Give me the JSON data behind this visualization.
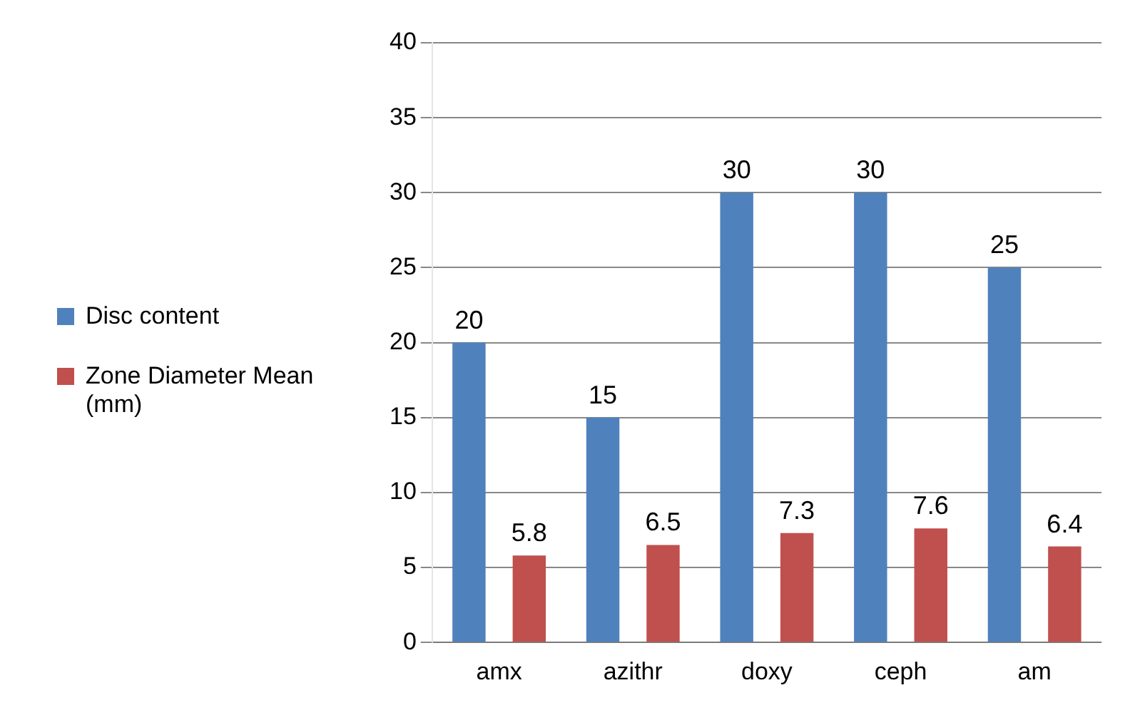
{
  "chart_data": {
    "type": "bar",
    "categories": [
      "amx",
      "azithr",
      "doxy",
      "ceph",
      "am"
    ],
    "series": [
      {
        "name": "Disc content",
        "color": "#4f81bd",
        "values": [
          20,
          15,
          30,
          30,
          25
        ]
      },
      {
        "name": "Zone Diameter Mean (mm)",
        "color": "#c0504d",
        "values": [
          5.8,
          6.5,
          7.3,
          7.6,
          6.4
        ]
      }
    ],
    "ylim": [
      0,
      40
    ],
    "yticks": [
      0,
      5,
      10,
      15,
      20,
      25,
      30,
      35,
      40
    ],
    "grid": "y",
    "legend": "left",
    "data_labels": true
  }
}
